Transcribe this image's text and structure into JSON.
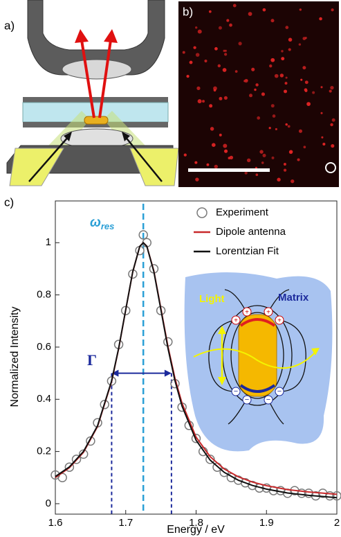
{
  "panels": {
    "a": "a)",
    "b": "b)"
  },
  "chart_data": {
    "type": "scatter",
    "panel_label": "c)",
    "xlabel": "Energy / eV",
    "ylabel": "Normalized Intensity",
    "xlim": [
      1.6,
      2
    ],
    "ylim": [
      -0.04,
      1.16
    ],
    "xticks": [
      1.6,
      1.7,
      1.8,
      1.9,
      2
    ],
    "yticks": [
      0,
      0.2,
      0.4,
      0.6,
      0.8,
      1
    ],
    "series": [
      {
        "name": "Experiment",
        "color": "#7a7a7a",
        "mode": "markers",
        "x": [
          1.6,
          1.61,
          1.62,
          1.63,
          1.64,
          1.65,
          1.66,
          1.67,
          1.68,
          1.69,
          1.7,
          1.71,
          1.72,
          1.725,
          1.73,
          1.74,
          1.75,
          1.76,
          1.77,
          1.78,
          1.79,
          1.8,
          1.81,
          1.82,
          1.83,
          1.84,
          1.85,
          1.86,
          1.87,
          1.88,
          1.89,
          1.9,
          1.91,
          1.92,
          1.93,
          1.94,
          1.95,
          1.96,
          1.97,
          1.98,
          1.99,
          2
        ],
        "values": [
          0.11,
          0.1,
          0.14,
          0.17,
          0.19,
          0.24,
          0.31,
          0.38,
          0.47,
          0.61,
          0.74,
          0.88,
          0.97,
          1.03,
          1.0,
          0.9,
          0.74,
          0.62,
          0.46,
          0.37,
          0.3,
          0.25,
          0.2,
          0.17,
          0.14,
          0.12,
          0.1,
          0.09,
          0.08,
          0.07,
          0.06,
          0.06,
          0.05,
          0.05,
          0.04,
          0.05,
          0.04,
          0.04,
          0.03,
          0.04,
          0.03,
          0.03
        ]
      },
      {
        "name": "Dipole antenna",
        "color": "#c8282a",
        "mode": "line",
        "x": [
          1.6,
          1.62,
          1.64,
          1.66,
          1.68,
          1.69,
          1.7,
          1.71,
          1.72,
          1.725,
          1.73,
          1.74,
          1.75,
          1.76,
          1.77,
          1.78,
          1.8,
          1.82,
          1.84,
          1.86,
          1.88,
          1.9,
          1.93,
          1.96,
          2
        ],
        "values": [
          0.1,
          0.138,
          0.197,
          0.296,
          0.468,
          0.594,
          0.742,
          0.888,
          0.986,
          1,
          0.987,
          0.892,
          0.748,
          0.603,
          0.48,
          0.385,
          0.255,
          0.18,
          0.133,
          0.103,
          0.083,
          0.069,
          0.054,
          0.045,
          0.036
        ]
      },
      {
        "name": "Lorentzian Fit",
        "color": "#111111",
        "mode": "line",
        "x": [
          1.6,
          1.62,
          1.64,
          1.66,
          1.68,
          1.69,
          1.7,
          1.71,
          1.72,
          1.725,
          1.73,
          1.74,
          1.75,
          1.76,
          1.77,
          1.78,
          1.8,
          1.82,
          1.84,
          1.86,
          1.88,
          1.9,
          1.93,
          1.96,
          2
        ],
        "values": [
          0.104,
          0.141,
          0.2,
          0.299,
          0.471,
          0.596,
          0.743,
          0.889,
          0.986,
          1,
          0.986,
          0.889,
          0.743,
          0.596,
          0.471,
          0.374,
          0.243,
          0.167,
          0.12,
          0.09,
          0.07,
          0.056,
          0.041,
          0.032,
          0.023
        ]
      }
    ],
    "resonance": {
      "label": "ω",
      "subscript": "res",
      "x": 1.725,
      "color": "#2a9fd6"
    },
    "linewidth": {
      "label": "Γ",
      "x": [
        1.68,
        1.765
      ],
      "y": 0.5,
      "color": "#1c2a9c"
    },
    "inset": {
      "light": "Light",
      "matrix": "Matrix"
    }
  }
}
